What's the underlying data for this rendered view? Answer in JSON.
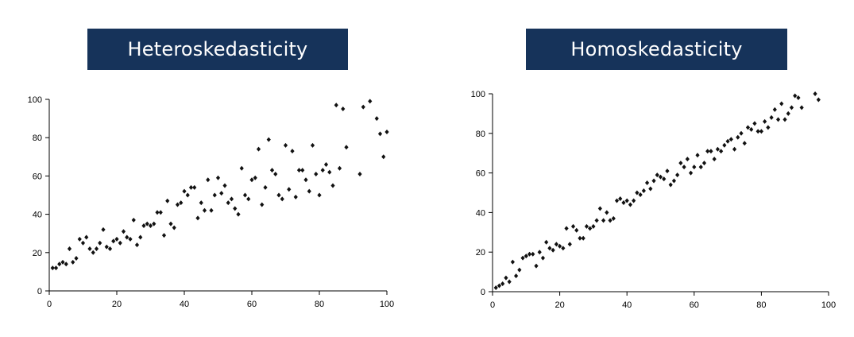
{
  "chart_data": [
    {
      "type": "scatter",
      "title": "Heteroskedasticity",
      "xlabel": "",
      "ylabel": "",
      "xlim": [
        0,
        100
      ],
      "ylim": [
        0,
        100
      ],
      "xticks": [
        0,
        20,
        40,
        60,
        80,
        100
      ],
      "yticks": [
        0,
        20,
        40,
        60,
        80,
        100
      ],
      "grid": false,
      "marker_color": "#111111",
      "points": [
        [
          1,
          12
        ],
        [
          2,
          12
        ],
        [
          3,
          14
        ],
        [
          4,
          15
        ],
        [
          5,
          14
        ],
        [
          6,
          22
        ],
        [
          7,
          15
        ],
        [
          8,
          17
        ],
        [
          9,
          27
        ],
        [
          10,
          25
        ],
        [
          11,
          28
        ],
        [
          12,
          22
        ],
        [
          13,
          20
        ],
        [
          14,
          22
        ],
        [
          15,
          25
        ],
        [
          16,
          32
        ],
        [
          17,
          23
        ],
        [
          18,
          22
        ],
        [
          19,
          26
        ],
        [
          20,
          27
        ],
        [
          21,
          25
        ],
        [
          22,
          31
        ],
        [
          23,
          28
        ],
        [
          24,
          27
        ],
        [
          25,
          37
        ],
        [
          26,
          24
        ],
        [
          27,
          28
        ],
        [
          28,
          34
        ],
        [
          29,
          35
        ],
        [
          30,
          34
        ],
        [
          31,
          35
        ],
        [
          32,
          41
        ],
        [
          33,
          41
        ],
        [
          34,
          29
        ],
        [
          35,
          47
        ],
        [
          36,
          35
        ],
        [
          37,
          33
        ],
        [
          38,
          45
        ],
        [
          39,
          46
        ],
        [
          40,
          52
        ],
        [
          41,
          50
        ],
        [
          42,
          54
        ],
        [
          43,
          54
        ],
        [
          44,
          38
        ],
        [
          45,
          46
        ],
        [
          46,
          42
        ],
        [
          47,
          58
        ],
        [
          48,
          42
        ],
        [
          49,
          50
        ],
        [
          50,
          59
        ],
        [
          51,
          51
        ],
        [
          52,
          55
        ],
        [
          53,
          46
        ],
        [
          54,
          48
        ],
        [
          55,
          43
        ],
        [
          56,
          40
        ],
        [
          57,
          64
        ],
        [
          58,
          50
        ],
        [
          59,
          48
        ],
        [
          60,
          58
        ],
        [
          61,
          59
        ],
        [
          62,
          74
        ],
        [
          63,
          45
        ],
        [
          64,
          54
        ],
        [
          65,
          79
        ],
        [
          66,
          63
        ],
        [
          67,
          61
        ],
        [
          68,
          50
        ],
        [
          69,
          48
        ],
        [
          70,
          76
        ],
        [
          71,
          53
        ],
        [
          72,
          73
        ],
        [
          73,
          49
        ],
        [
          74,
          63
        ],
        [
          75,
          63
        ],
        [
          76,
          58
        ],
        [
          77,
          52
        ],
        [
          78,
          76
        ],
        [
          79,
          61
        ],
        [
          80,
          50
        ],
        [
          81,
          63
        ],
        [
          82,
          66
        ],
        [
          83,
          62
        ],
        [
          84,
          55
        ],
        [
          85,
          97
        ],
        [
          86,
          64
        ],
        [
          87,
          95
        ],
        [
          88,
          75
        ],
        [
          92,
          61
        ],
        [
          93,
          96
        ],
        [
          95,
          99
        ],
        [
          97,
          90
        ],
        [
          98,
          82
        ],
        [
          99,
          70
        ],
        [
          100,
          83
        ]
      ]
    },
    {
      "type": "scatter",
      "title": "Homoskedasticity",
      "xlabel": "",
      "ylabel": "",
      "xlim": [
        0,
        100
      ],
      "ylim": [
        0,
        100
      ],
      "xticks": [
        0,
        20,
        40,
        60,
        80,
        100
      ],
      "yticks": [
        0,
        20,
        40,
        60,
        80,
        100
      ],
      "grid": false,
      "marker_color": "#111111",
      "points": [
        [
          1,
          2
        ],
        [
          2,
          3
        ],
        [
          3,
          4
        ],
        [
          4,
          7
        ],
        [
          5,
          5
        ],
        [
          6,
          15
        ],
        [
          7,
          8
        ],
        [
          8,
          11
        ],
        [
          9,
          17
        ],
        [
          10,
          18
        ],
        [
          11,
          19
        ],
        [
          12,
          19
        ],
        [
          13,
          13
        ],
        [
          14,
          20
        ],
        [
          15,
          17
        ],
        [
          16,
          25
        ],
        [
          17,
          22
        ],
        [
          18,
          21
        ],
        [
          19,
          24
        ],
        [
          20,
          23
        ],
        [
          21,
          22
        ],
        [
          22,
          32
        ],
        [
          23,
          24
        ],
        [
          24,
          33
        ],
        [
          25,
          31
        ],
        [
          26,
          27
        ],
        [
          27,
          27
        ],
        [
          28,
          33
        ],
        [
          29,
          32
        ],
        [
          30,
          33
        ],
        [
          31,
          36
        ],
        [
          32,
          42
        ],
        [
          33,
          36
        ],
        [
          34,
          40
        ],
        [
          35,
          36
        ],
        [
          36,
          37
        ],
        [
          37,
          46
        ],
        [
          38,
          47
        ],
        [
          39,
          45
        ],
        [
          40,
          46
        ],
        [
          41,
          44
        ],
        [
          42,
          46
        ],
        [
          43,
          50
        ],
        [
          44,
          49
        ],
        [
          45,
          51
        ],
        [
          46,
          55
        ],
        [
          47,
          52
        ],
        [
          48,
          56
        ],
        [
          49,
          59
        ],
        [
          50,
          58
        ],
        [
          51,
          57
        ],
        [
          52,
          61
        ],
        [
          53,
          54
        ],
        [
          54,
          56
        ],
        [
          55,
          59
        ],
        [
          56,
          65
        ],
        [
          57,
          63
        ],
        [
          58,
          67
        ],
        [
          59,
          60
        ],
        [
          60,
          63
        ],
        [
          61,
          69
        ],
        [
          62,
          63
        ],
        [
          63,
          65
        ],
        [
          64,
          71
        ],
        [
          65,
          71
        ],
        [
          66,
          67
        ],
        [
          67,
          72
        ],
        [
          68,
          71
        ],
        [
          69,
          74
        ],
        [
          70,
          76
        ],
        [
          71,
          77
        ],
        [
          72,
          72
        ],
        [
          73,
          78
        ],
        [
          74,
          80
        ],
        [
          75,
          75
        ],
        [
          76,
          83
        ],
        [
          77,
          82
        ],
        [
          78,
          85
        ],
        [
          79,
          81
        ],
        [
          80,
          81
        ],
        [
          81,
          86
        ],
        [
          82,
          83
        ],
        [
          83,
          88
        ],
        [
          84,
          92
        ],
        [
          85,
          87
        ],
        [
          86,
          95
        ],
        [
          87,
          87
        ],
        [
          88,
          90
        ],
        [
          89,
          93
        ],
        [
          90,
          99
        ],
        [
          91,
          98
        ],
        [
          92,
          93
        ],
        [
          96,
          100
        ],
        [
          97,
          97
        ]
      ]
    }
  ]
}
